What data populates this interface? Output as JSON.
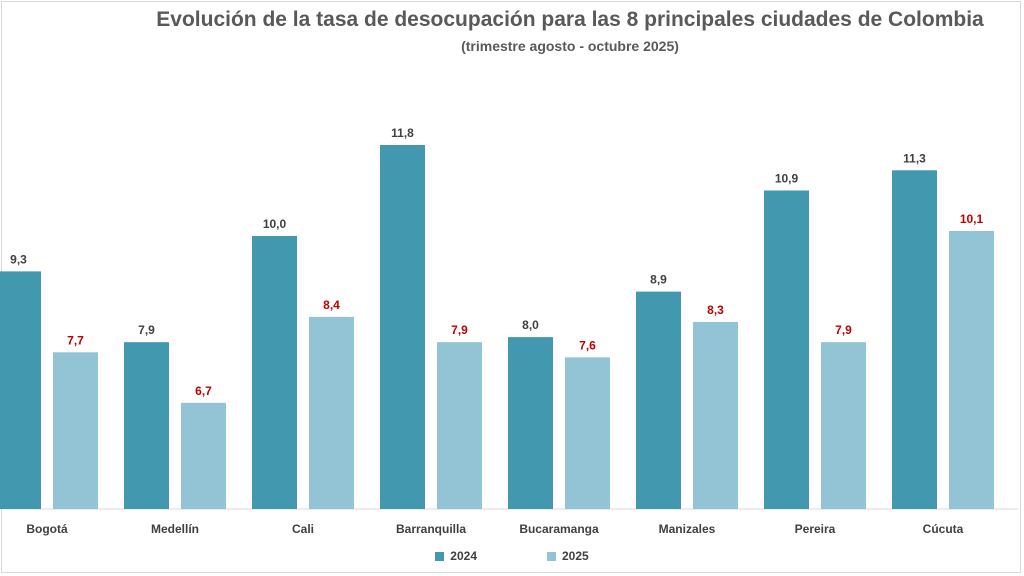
{
  "colors": {
    "series_2024": "#4298ae",
    "series_2025": "#92c4d5",
    "label_2024": "#404040",
    "label_2025": "#c00000",
    "axis": "#d9d9d9",
    "text": "#595959"
  },
  "chart_data": {
    "type": "bar",
    "title": "Evolución de la tasa de desocupación para las 8 principales ciudades de Colombia",
    "subtitle": "(trimestre agosto - octubre 2025)",
    "categories": [
      "Bogotá",
      "Medellín",
      "Cali",
      "Barranquilla",
      "Bucaramanga",
      "Manizales",
      "Pereira",
      "Cúcuta"
    ],
    "series": [
      {
        "name": "2024",
        "values": [
          9.3,
          7.9,
          10.0,
          11.8,
          8.0,
          8.9,
          10.9,
          11.3
        ],
        "labels": [
          "9,3",
          "7,9",
          "10,0",
          "11,8",
          "8,0",
          "8,9",
          "10,9",
          "11,3"
        ]
      },
      {
        "name": "2025",
        "values": [
          7.7,
          6.7,
          8.4,
          7.9,
          7.6,
          8.3,
          7.9,
          10.1
        ],
        "labels": [
          "7,7",
          "6,7",
          "8,4",
          "7,9",
          "7,6",
          "8,3",
          "7,9",
          "10,1"
        ]
      }
    ],
    "ylim": [
      4.6,
      12.5
    ],
    "legend": "bottom",
    "grid": false
  }
}
